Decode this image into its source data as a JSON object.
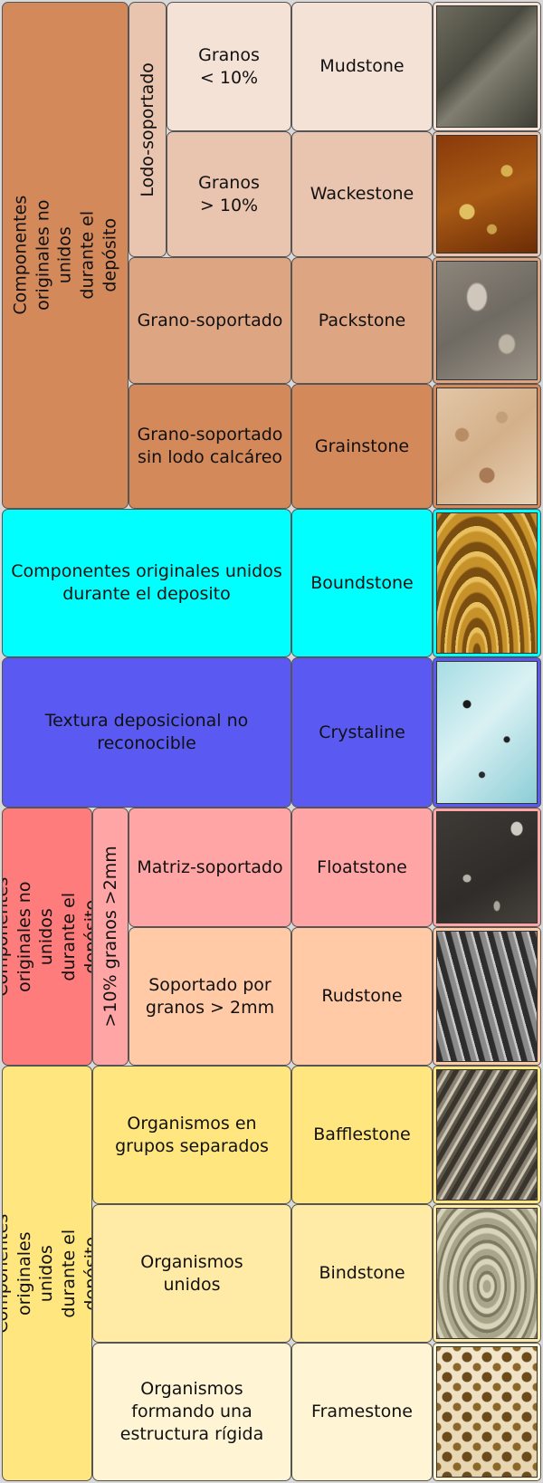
{
  "colors": {
    "group_a_dark": "#d4895a",
    "group_a_mid": "#dea583",
    "group_a_light": "#e9c4ae",
    "group_a_pale": "#f5e2d6",
    "boundstone": "#00ffff",
    "crystaline": "#5a5af2",
    "group_c_dark": "#ff7c7c",
    "group_c_mid": "#ffa5a5",
    "group_c_peach": "#ffcaa5",
    "group_d_dark": "#ffe67f",
    "group_d_mid": "#ffeba5",
    "group_d_pale": "#fff5d4"
  },
  "groups": {
    "dunham_not_bound": "Componentes originales no unidos durante el depósito",
    "mud_supported": "Lodo-soportado",
    "bound": "Componentes originales unidos durante el deposito",
    "not_recognizable": "Textura deposicional no reconocible",
    "embry_not_bound": "Componentes originales no unidos durante el depósito",
    "grains_2mm": ">10% granos >2mm",
    "embry_bound": "Componentes originales unidos durante el depósito"
  },
  "criteria": {
    "mud_lt10": "Granos\n< 10%",
    "mud_gt10": "Granos\n> 10%",
    "grain_supported": "Grano-soportado",
    "grain_no_mud": "Grano-soportado\nsin lodo calcáreo",
    "matrix_supported": "Matriz-soportado",
    "grain_2mm_supported": "Soportado por\ngranos > 2mm",
    "separate_groups": "Organismos en\ngrupos separados",
    "united": "Organismos\nunidos",
    "rigid": "Organismos\nformando una\nestructura rígida"
  },
  "names": {
    "mudstone": "Mudstone",
    "wackestone": "Wackestone",
    "packstone": "Packstone",
    "grainstone": "Grainstone",
    "boundstone": "Boundstone",
    "crystaline": "Crystaline",
    "floatstone": "Floatstone",
    "rudstone": "Rudstone",
    "bafflestone": "Bafflestone",
    "bindstone": "Bindstone",
    "framestone": "Framestone"
  },
  "photo_icons": {
    "mudstone": "mudstone-photo",
    "wackestone": "wackestone-photo",
    "packstone": "packstone-photo",
    "grainstone": "grainstone-photo",
    "boundstone": "boundstone-photo",
    "crystaline": "crystaline-photo",
    "floatstone": "floatstone-photo",
    "rudstone": "rudstone-photo",
    "bafflestone": "bafflestone-photo",
    "bindstone": "bindstone-photo",
    "framestone": "framestone-photo"
  }
}
